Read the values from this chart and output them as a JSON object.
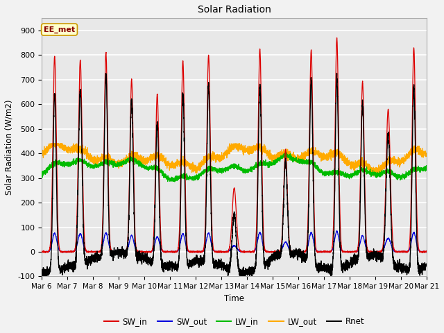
{
  "title": "Solar Radiation",
  "ylabel": "Solar Radiation (W/m2)",
  "xlabel": "Time",
  "ylim": [
    -100,
    950
  ],
  "xlim": [
    0,
    15
  ],
  "fig_bg": "#f2f2f2",
  "plot_bg": "#e8e8e8",
  "annotation_text": "EE_met",
  "annotation_bg": "#ffffcc",
  "annotation_border": "#cc9900",
  "grid_color": "white",
  "series_colors": {
    "SW_in": "#dd0000",
    "SW_out": "#0000dd",
    "LW_in": "#00bb00",
    "LW_out": "#ffaa00",
    "Rnet": "#000000"
  },
  "xtick_labels": [
    "Mar 6",
    "Mar 7",
    "Mar 8",
    "Mar 9",
    "Mar 10",
    "Mar 11",
    "Mar 12",
    "Mar 13",
    "Mar 14",
    "Mar 15",
    "Mar 16",
    "Mar 17",
    "Mar 18",
    "Mar 19",
    "Mar 20",
    "Mar 21"
  ],
  "xtick_positions": [
    0,
    1,
    2,
    3,
    4,
    5,
    6,
    7,
    8,
    9,
    10,
    11,
    12,
    13,
    14,
    15
  ],
  "ytick_labels": [
    "-100",
    "0",
    "100",
    "200",
    "300",
    "400",
    "500",
    "600",
    "700",
    "800",
    "900"
  ],
  "ytick_positions": [
    -100,
    0,
    100,
    200,
    300,
    400,
    500,
    600,
    700,
    800,
    900
  ],
  "n_days": 15,
  "pts_per_day": 288,
  "sw_in_peaks": [
    795,
    780,
    810,
    700,
    640,
    775,
    800,
    260,
    825,
    415,
    820,
    870,
    690,
    580,
    830
  ],
  "sw_peak_widths": [
    0.065,
    0.07,
    0.065,
    0.065,
    0.065,
    0.065,
    0.065,
    0.08,
    0.065,
    0.07,
    0.065,
    0.065,
    0.065,
    0.08,
    0.065
  ]
}
